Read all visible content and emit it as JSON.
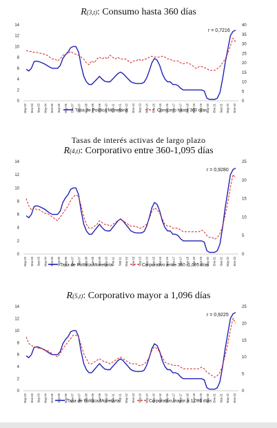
{
  "section_heading": "Tasas de interés activas de largo plazo",
  "chart_data": [
    {
      "type": "line",
      "title": "Consumo hasta 360 días",
      "title_symbol": "R",
      "title_subscript": "(3,t)",
      "correlation": "r = 0,7216",
      "left_axis": {
        "ylim": [
          0,
          14
        ],
        "ticks": [
          0,
          2,
          4,
          6,
          8,
          10,
          12,
          14
        ]
      },
      "right_axis": {
        "ylim": [
          0,
          40
        ],
        "ticks": [
          0,
          5,
          10,
          15,
          20,
          25,
          30,
          35,
          40
        ]
      },
      "x_ticks": [
        "May-02",
        "Ene-03",
        "Sep-03",
        "May-04",
        "Ene-05",
        "Sep-05",
        "May-06",
        "Ene-07",
        "Sep-07",
        "May-08",
        "Ene-09",
        "Sep-09",
        "May-10",
        "Ene-11",
        "Sep-11",
        "May-12",
        "Ene-13",
        "Sep-13",
        "May-14",
        "Ene-15",
        "Sep-15",
        "May-16",
        "Ene-17",
        "Sep-17",
        "May-18",
        "Ene-19",
        "Sep-19",
        "May-20",
        "Ene-21",
        "Sep-21",
        "May-22",
        "Ene-23"
      ],
      "series": [
        {
          "name": "Tasa de Política Monetaria",
          "axis": "left",
          "style": "solid",
          "color": "#1f1fb4",
          "values": [
            5.8,
            5.5,
            6.0,
            7.2,
            7.3,
            7.2,
            7.0,
            6.8,
            6.5,
            6.2,
            6.0,
            6.0,
            6.0,
            6.5,
            7.8,
            8.5,
            9.0,
            9.8,
            10.0,
            10.0,
            9.0,
            6.5,
            4.5,
            3.5,
            3.0,
            3.0,
            3.5,
            4.0,
            4.5,
            4.0,
            3.6,
            3.5,
            3.5,
            4.0,
            4.5,
            5.0,
            5.3,
            5.0,
            4.5,
            4.0,
            3.5,
            3.3,
            3.2,
            3.2,
            3.2,
            3.4,
            4.2,
            5.5,
            7.0,
            7.8,
            7.5,
            6.5,
            5.0,
            4.0,
            3.5,
            3.5,
            3.0,
            3.0,
            2.8,
            2.3,
            2.0,
            2.0,
            2.0,
            2.0,
            2.0,
            2.0,
            2.0,
            2.0,
            1.8,
            0.5,
            0.25,
            0.25,
            0.25,
            0.5,
            1.5,
            4.0,
            7.0,
            9.5,
            12.0,
            12.8,
            13.0
          ]
        },
        {
          "name": "Consumo hasta 360 días",
          "axis": "right",
          "style": "dashed",
          "color": "#d62020",
          "values": [
            26.5,
            26.0,
            26.0,
            25.5,
            25.5,
            25.0,
            25.0,
            24.5,
            24.0,
            23.0,
            22.0,
            22.0,
            21.0,
            22.0,
            24.0,
            24.5,
            25.0,
            26.0,
            25.0,
            24.5,
            24.0,
            23.0,
            22.0,
            20.0,
            19.0,
            21.0,
            20.0,
            22.0,
            23.0,
            22.0,
            23.0,
            22.0,
            24.0,
            23.0,
            22.0,
            23.0,
            22.0,
            22.0,
            22.0,
            21.0,
            20.0,
            21.0,
            21.0,
            22.0,
            21.0,
            22.0,
            22.0,
            23.0,
            23.5,
            23.0,
            23.0,
            23.0,
            23.5,
            23.0,
            22.0,
            22.0,
            21.0,
            21.0,
            21.0,
            20.0,
            19.5,
            20.0,
            20.0,
            19.0,
            18.0,
            17.0,
            18.0,
            18.0,
            17.5,
            17.0,
            16.0,
            16.0,
            16.0,
            17.0,
            18.0,
            20.0,
            22.0,
            25.0,
            29.0,
            33.0,
            31.0
          ]
        }
      ]
    },
    {
      "type": "line",
      "title": "Corporativo entre 360-1,095 días",
      "title_symbol": "R",
      "title_subscript": "(4,t)",
      "correlation": "r = 0,9280",
      "left_axis": {
        "ylim": [
          0,
          14
        ],
        "ticks": [
          0,
          2,
          4,
          6,
          8,
          10,
          12,
          14
        ]
      },
      "right_axis": {
        "ylim": [
          0,
          25
        ],
        "ticks": [
          0,
          5,
          10,
          15,
          20,
          25
        ]
      },
      "x_ticks": [
        "May-02",
        "Ene-03",
        "Sep-03",
        "May-04",
        "Ene-05",
        "Sep-05",
        "May-06",
        "Ene-07",
        "Sep-07",
        "May-08",
        "Ene-09",
        "Sep-09",
        "May-10",
        "Ene-11",
        "Sep-11",
        "May-12",
        "Ene-13",
        "Sep-13",
        "May-14",
        "Ene-15",
        "Sep-15",
        "May-16",
        "Ene-17",
        "Sep-17",
        "May-18",
        "Ene-19",
        "Sep-19",
        "May-20",
        "Ene-21",
        "Sep-21",
        "May-22",
        "Ene-23"
      ],
      "series": [
        {
          "name": "Tasa de Política Monetaria",
          "axis": "left",
          "style": "solid",
          "color": "#1f1fb4",
          "values": [
            5.8,
            5.5,
            6.0,
            7.2,
            7.3,
            7.2,
            7.0,
            6.8,
            6.5,
            6.2,
            6.0,
            6.0,
            6.0,
            6.5,
            7.8,
            8.5,
            9.0,
            9.8,
            10.0,
            10.0,
            9.0,
            6.5,
            4.5,
            3.5,
            3.0,
            3.0,
            3.5,
            4.0,
            4.5,
            4.0,
            3.6,
            3.5,
            3.5,
            4.0,
            4.5,
            5.0,
            5.3,
            5.0,
            4.5,
            4.0,
            3.5,
            3.3,
            3.2,
            3.2,
            3.2,
            3.4,
            4.2,
            5.5,
            7.0,
            7.8,
            7.5,
            6.5,
            5.0,
            4.0,
            3.5,
            3.5,
            3.0,
            3.0,
            2.8,
            2.3,
            2.0,
            2.0,
            2.0,
            2.0,
            2.0,
            2.0,
            2.0,
            2.0,
            1.8,
            0.5,
            0.25,
            0.25,
            0.25,
            0.5,
            1.5,
            4.0,
            7.0,
            9.5,
            12.0,
            12.8,
            13.0
          ]
        },
        {
          "name": "Corporativo entre 360 -1,095 días",
          "axis": "right",
          "style": "dashed",
          "color": "#d62020",
          "values": [
            15.0,
            13.0,
            12.0,
            12.5,
            12.0,
            12.0,
            11.5,
            11.0,
            11.0,
            10.5,
            10.0,
            9.5,
            9.0,
            10.0,
            11.0,
            12.0,
            13.0,
            14.5,
            15.5,
            16.0,
            15.5,
            13.0,
            10.0,
            8.0,
            7.0,
            7.0,
            7.5,
            8.0,
            9.0,
            8.5,
            8.0,
            8.0,
            7.5,
            8.0,
            8.5,
            9.0,
            9.5,
            9.0,
            8.5,
            8.0,
            7.5,
            7.5,
            7.5,
            7.0,
            7.0,
            7.5,
            8.0,
            9.5,
            11.5,
            12.5,
            12.0,
            11.0,
            9.5,
            8.0,
            7.5,
            7.5,
            7.0,
            7.0,
            7.0,
            6.5,
            6.0,
            6.0,
            6.0,
            6.0,
            6.0,
            6.0,
            6.0,
            6.5,
            6.0,
            5.0,
            4.5,
            4.5,
            4.0,
            4.5,
            5.5,
            7.5,
            10.5,
            14.0,
            18.0,
            21.5,
            20.5
          ]
        }
      ]
    },
    {
      "type": "line",
      "title": "Corporativo mayor a 1,096 días",
      "title_symbol": "R",
      "title_subscript": "(5,t)",
      "correlation": "r = 0,9225",
      "left_axis": {
        "ylim": [
          0,
          14
        ],
        "ticks": [
          0,
          2,
          4,
          6,
          8,
          10,
          12,
          14
        ]
      },
      "right_axis": {
        "ylim": [
          0,
          25
        ],
        "ticks": [
          0,
          5,
          10,
          15,
          20,
          25
        ]
      },
      "x_ticks": [
        "May-02",
        "Ene-03",
        "Sep-03",
        "May-04",
        "Ene-05",
        "Sep-05",
        "May-06",
        "Ene-07",
        "Sep-07",
        "May-08",
        "Ene-09",
        "Sep-09",
        "May-10",
        "Ene-11",
        "Sep-11",
        "May-12",
        "Ene-13",
        "Sep-13",
        "May-14",
        "Ene-15",
        "Sep-15",
        "May-16",
        "Ene-17",
        "Sep-17",
        "May-18",
        "Ene-19",
        "Sep-19",
        "May-20",
        "Ene-21",
        "Sep-21",
        "May-22",
        "Ene-23"
      ],
      "series": [
        {
          "name": "Tasa de Política Monetaria",
          "axis": "left",
          "style": "solid",
          "color": "#1f1fb4",
          "values": [
            5.8,
            5.5,
            6.0,
            7.2,
            7.3,
            7.2,
            7.0,
            6.8,
            6.5,
            6.2,
            6.0,
            6.0,
            6.0,
            6.5,
            7.8,
            8.5,
            9.0,
            9.8,
            10.0,
            10.0,
            9.0,
            6.5,
            4.5,
            3.5,
            3.0,
            3.0,
            3.5,
            4.0,
            4.5,
            4.0,
            3.6,
            3.5,
            3.5,
            4.0,
            4.5,
            5.0,
            5.3,
            5.0,
            4.5,
            4.0,
            3.5,
            3.3,
            3.2,
            3.2,
            3.2,
            3.4,
            4.2,
            5.5,
            7.0,
            7.8,
            7.5,
            6.5,
            5.0,
            4.0,
            3.5,
            3.5,
            3.0,
            3.0,
            2.8,
            2.3,
            2.0,
            2.0,
            2.0,
            2.0,
            2.0,
            2.0,
            2.0,
            2.0,
            1.8,
            0.5,
            0.25,
            0.25,
            0.25,
            0.5,
            1.5,
            4.0,
            7.0,
            9.5,
            12.0,
            12.8,
            13.0
          ]
        },
        {
          "name": "Corporativo mayor a 1,096 días",
          "axis": "right",
          "style": "dashed",
          "color": "#d62020",
          "values": [
            16.0,
            14.0,
            13.5,
            13.0,
            13.0,
            12.5,
            12.5,
            12.0,
            12.0,
            11.5,
            11.0,
            10.5,
            10.0,
            11.0,
            12.5,
            13.5,
            14.5,
            15.5,
            16.5,
            16.5,
            16.0,
            13.5,
            11.0,
            9.5,
            8.0,
            8.0,
            8.5,
            9.0,
            9.5,
            9.0,
            8.5,
            8.5,
            8.0,
            8.5,
            9.0,
            9.5,
            10.0,
            9.5,
            9.0,
            8.5,
            8.0,
            8.0,
            8.0,
            7.5,
            7.5,
            8.0,
            8.5,
            10.0,
            12.0,
            13.0,
            12.5,
            11.5,
            10.0,
            8.5,
            8.0,
            8.0,
            7.5,
            7.5,
            7.5,
            7.0,
            6.5,
            6.5,
            6.5,
            6.5,
            6.5,
            6.5,
            6.5,
            7.0,
            6.5,
            5.5,
            5.0,
            4.5,
            4.0,
            4.5,
            5.5,
            7.5,
            10.5,
            14.0,
            18.0,
            21.5,
            20.0
          ]
        }
      ]
    }
  ]
}
